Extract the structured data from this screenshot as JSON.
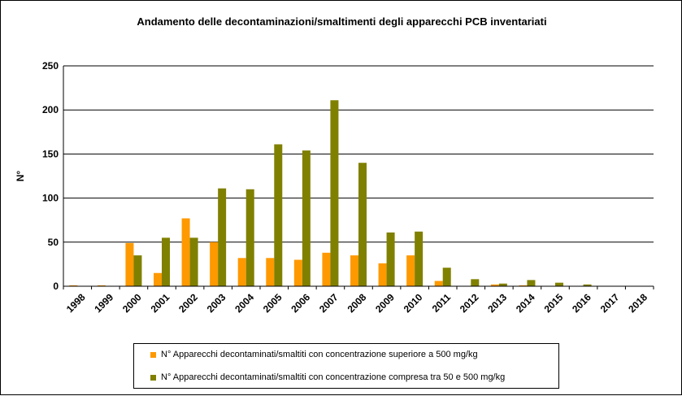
{
  "chart_data": {
    "type": "bar",
    "title": "Andamento  delle decontaminazioni/smaltimenti  degli apparecchi  PCB inventariati",
    "ylabel": "N°",
    "xlabel": "",
    "ylim": [
      0,
      250
    ],
    "yticks": [
      0,
      50,
      100,
      150,
      200,
      250
    ],
    "grid": true,
    "legend_position": "bottom",
    "categories": [
      "1998",
      "1999",
      "2000",
      "2001",
      "2002",
      "2003",
      "2004",
      "2005",
      "2006",
      "2007",
      "2008",
      "2009",
      "2010",
      "2011",
      "2012",
      "2013",
      "2014",
      "2015",
      "2016",
      "2017",
      "2018"
    ],
    "series": [
      {
        "name": "N° Apparecchi decontaminati/smaltiti  con concentrazione superiore a 500 mg/kg",
        "color": "#ff9900",
        "values": [
          1,
          1,
          49,
          15,
          77,
          50,
          32,
          32,
          30,
          38,
          35,
          26,
          35,
          6,
          0,
          2,
          1,
          0,
          0,
          0,
          0
        ]
      },
      {
        "name": "N° Apparecchi decontaminati/smaltiti con concentrazione compresa tra 50 e 500 mg/kg",
        "color": "#808000",
        "values": [
          0,
          0,
          35,
          55,
          55,
          111,
          110,
          161,
          154,
          211,
          140,
          61,
          62,
          21,
          8,
          3,
          7,
          4,
          2,
          0,
          0
        ]
      }
    ]
  }
}
